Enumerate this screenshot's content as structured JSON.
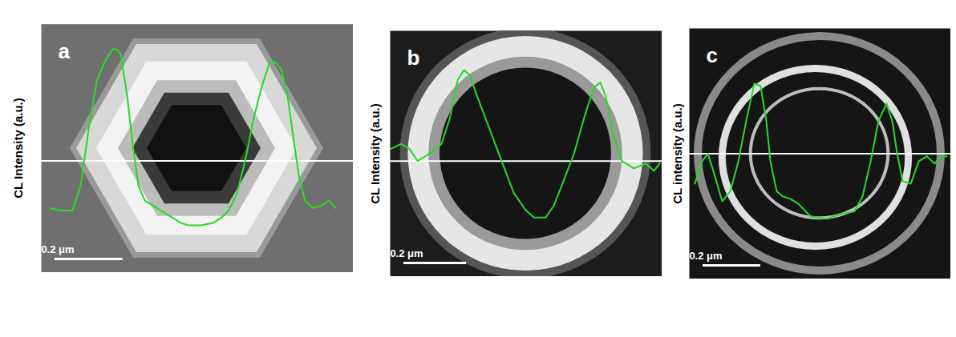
{
  "chart_data": [
    {
      "type": "line",
      "title": "a",
      "ylabel": "CL Intensity (a.u.)",
      "color": "#22dd22",
      "x": [
        0.028,
        0.059,
        0.094,
        0.118,
        0.142,
        0.165,
        0.189,
        0.212,
        0.224,
        0.236,
        0.255,
        0.271,
        0.288,
        0.307,
        0.342,
        0.377,
        0.413,
        0.436,
        0.472,
        0.507,
        0.531,
        0.554,
        0.578,
        0.602,
        0.625,
        0.649,
        0.672,
        0.689,
        0.708,
        0.727,
        0.743,
        0.76,
        0.778,
        0.802,
        0.826,
        0.849,
        0.868
      ],
      "values": [
        0.26,
        0.25,
        0.25,
        0.35,
        0.58,
        0.77,
        0.85,
        0.9,
        0.9,
        0.88,
        0.71,
        0.52,
        0.35,
        0.29,
        0.26,
        0.23,
        0.2,
        0.19,
        0.19,
        0.2,
        0.22,
        0.25,
        0.32,
        0.45,
        0.61,
        0.74,
        0.84,
        0.85,
        0.82,
        0.71,
        0.55,
        0.39,
        0.29,
        0.26,
        0.27,
        0.29,
        0.26
      ],
      "xlim": [
        0,
        0.92
      ],
      "ylim": [
        0,
        1
      ],
      "xticks": [],
      "yticks": [],
      "tick_labels": false,
      "annotations": [
        {
          "type": "scale_bar",
          "label": "0.2 μm",
          "length": 0.2
        },
        {
          "type": "hline",
          "y": 0.45
        }
      ]
    },
    {
      "type": "line",
      "title": "b",
      "ylabel": "CL Intensity (a.u.)",
      "color": "#22dd22",
      "x": [
        0.005,
        0.038,
        0.064,
        0.09,
        0.128,
        0.166,
        0.192,
        0.218,
        0.238,
        0.256,
        0.281,
        0.32,
        0.358,
        0.397,
        0.435,
        0.461,
        0.499,
        0.525,
        0.55,
        0.589,
        0.627,
        0.653,
        0.673,
        0.691,
        0.717,
        0.742,
        0.78,
        0.819,
        0.844,
        0.862
      ],
      "values": [
        0.52,
        0.54,
        0.52,
        0.47,
        0.5,
        0.54,
        0.64,
        0.8,
        0.84,
        0.82,
        0.73,
        0.6,
        0.47,
        0.34,
        0.27,
        0.24,
        0.24,
        0.29,
        0.37,
        0.5,
        0.67,
        0.77,
        0.79,
        0.73,
        0.57,
        0.47,
        0.44,
        0.46,
        0.43,
        0.46
      ],
      "xlim": [
        0,
        0.87
      ],
      "ylim": [
        0,
        1
      ],
      "xticks": [],
      "yticks": [],
      "tick_labels": false,
      "annotations": [
        {
          "type": "scale_bar",
          "label": "0.2 μm",
          "length": 0.2
        },
        {
          "type": "hline",
          "y": 0.47
        }
      ]
    },
    {
      "type": "line",
      "title": "c",
      "ylabel": "CL intensity (a.u.)",
      "color": "#22dd22",
      "x": [
        0.022,
        0.047,
        0.067,
        0.089,
        0.117,
        0.145,
        0.173,
        0.2,
        0.228,
        0.25,
        0.27,
        0.284,
        0.306,
        0.326,
        0.353,
        0.381,
        0.423,
        0.479,
        0.534,
        0.576,
        0.604,
        0.632,
        0.659,
        0.687,
        0.707,
        0.724,
        0.743,
        0.771,
        0.799,
        0.827,
        0.854,
        0.874,
        0.896
      ],
      "values": [
        0.38,
        0.47,
        0.5,
        0.42,
        0.31,
        0.35,
        0.47,
        0.63,
        0.78,
        0.77,
        0.63,
        0.47,
        0.35,
        0.33,
        0.32,
        0.3,
        0.25,
        0.24,
        0.26,
        0.27,
        0.33,
        0.47,
        0.63,
        0.7,
        0.63,
        0.5,
        0.39,
        0.38,
        0.47,
        0.49,
        0.46,
        0.49,
        0.49
      ],
      "xlim": [
        0,
        0.91
      ],
      "ylim": [
        0,
        1
      ],
      "xticks": [],
      "yticks": [],
      "tick_labels": false,
      "annotations": [
        {
          "type": "scale_bar",
          "label": "0.2 μm",
          "length": 0.2
        },
        {
          "type": "hline",
          "y": 0.5
        }
      ]
    }
  ]
}
